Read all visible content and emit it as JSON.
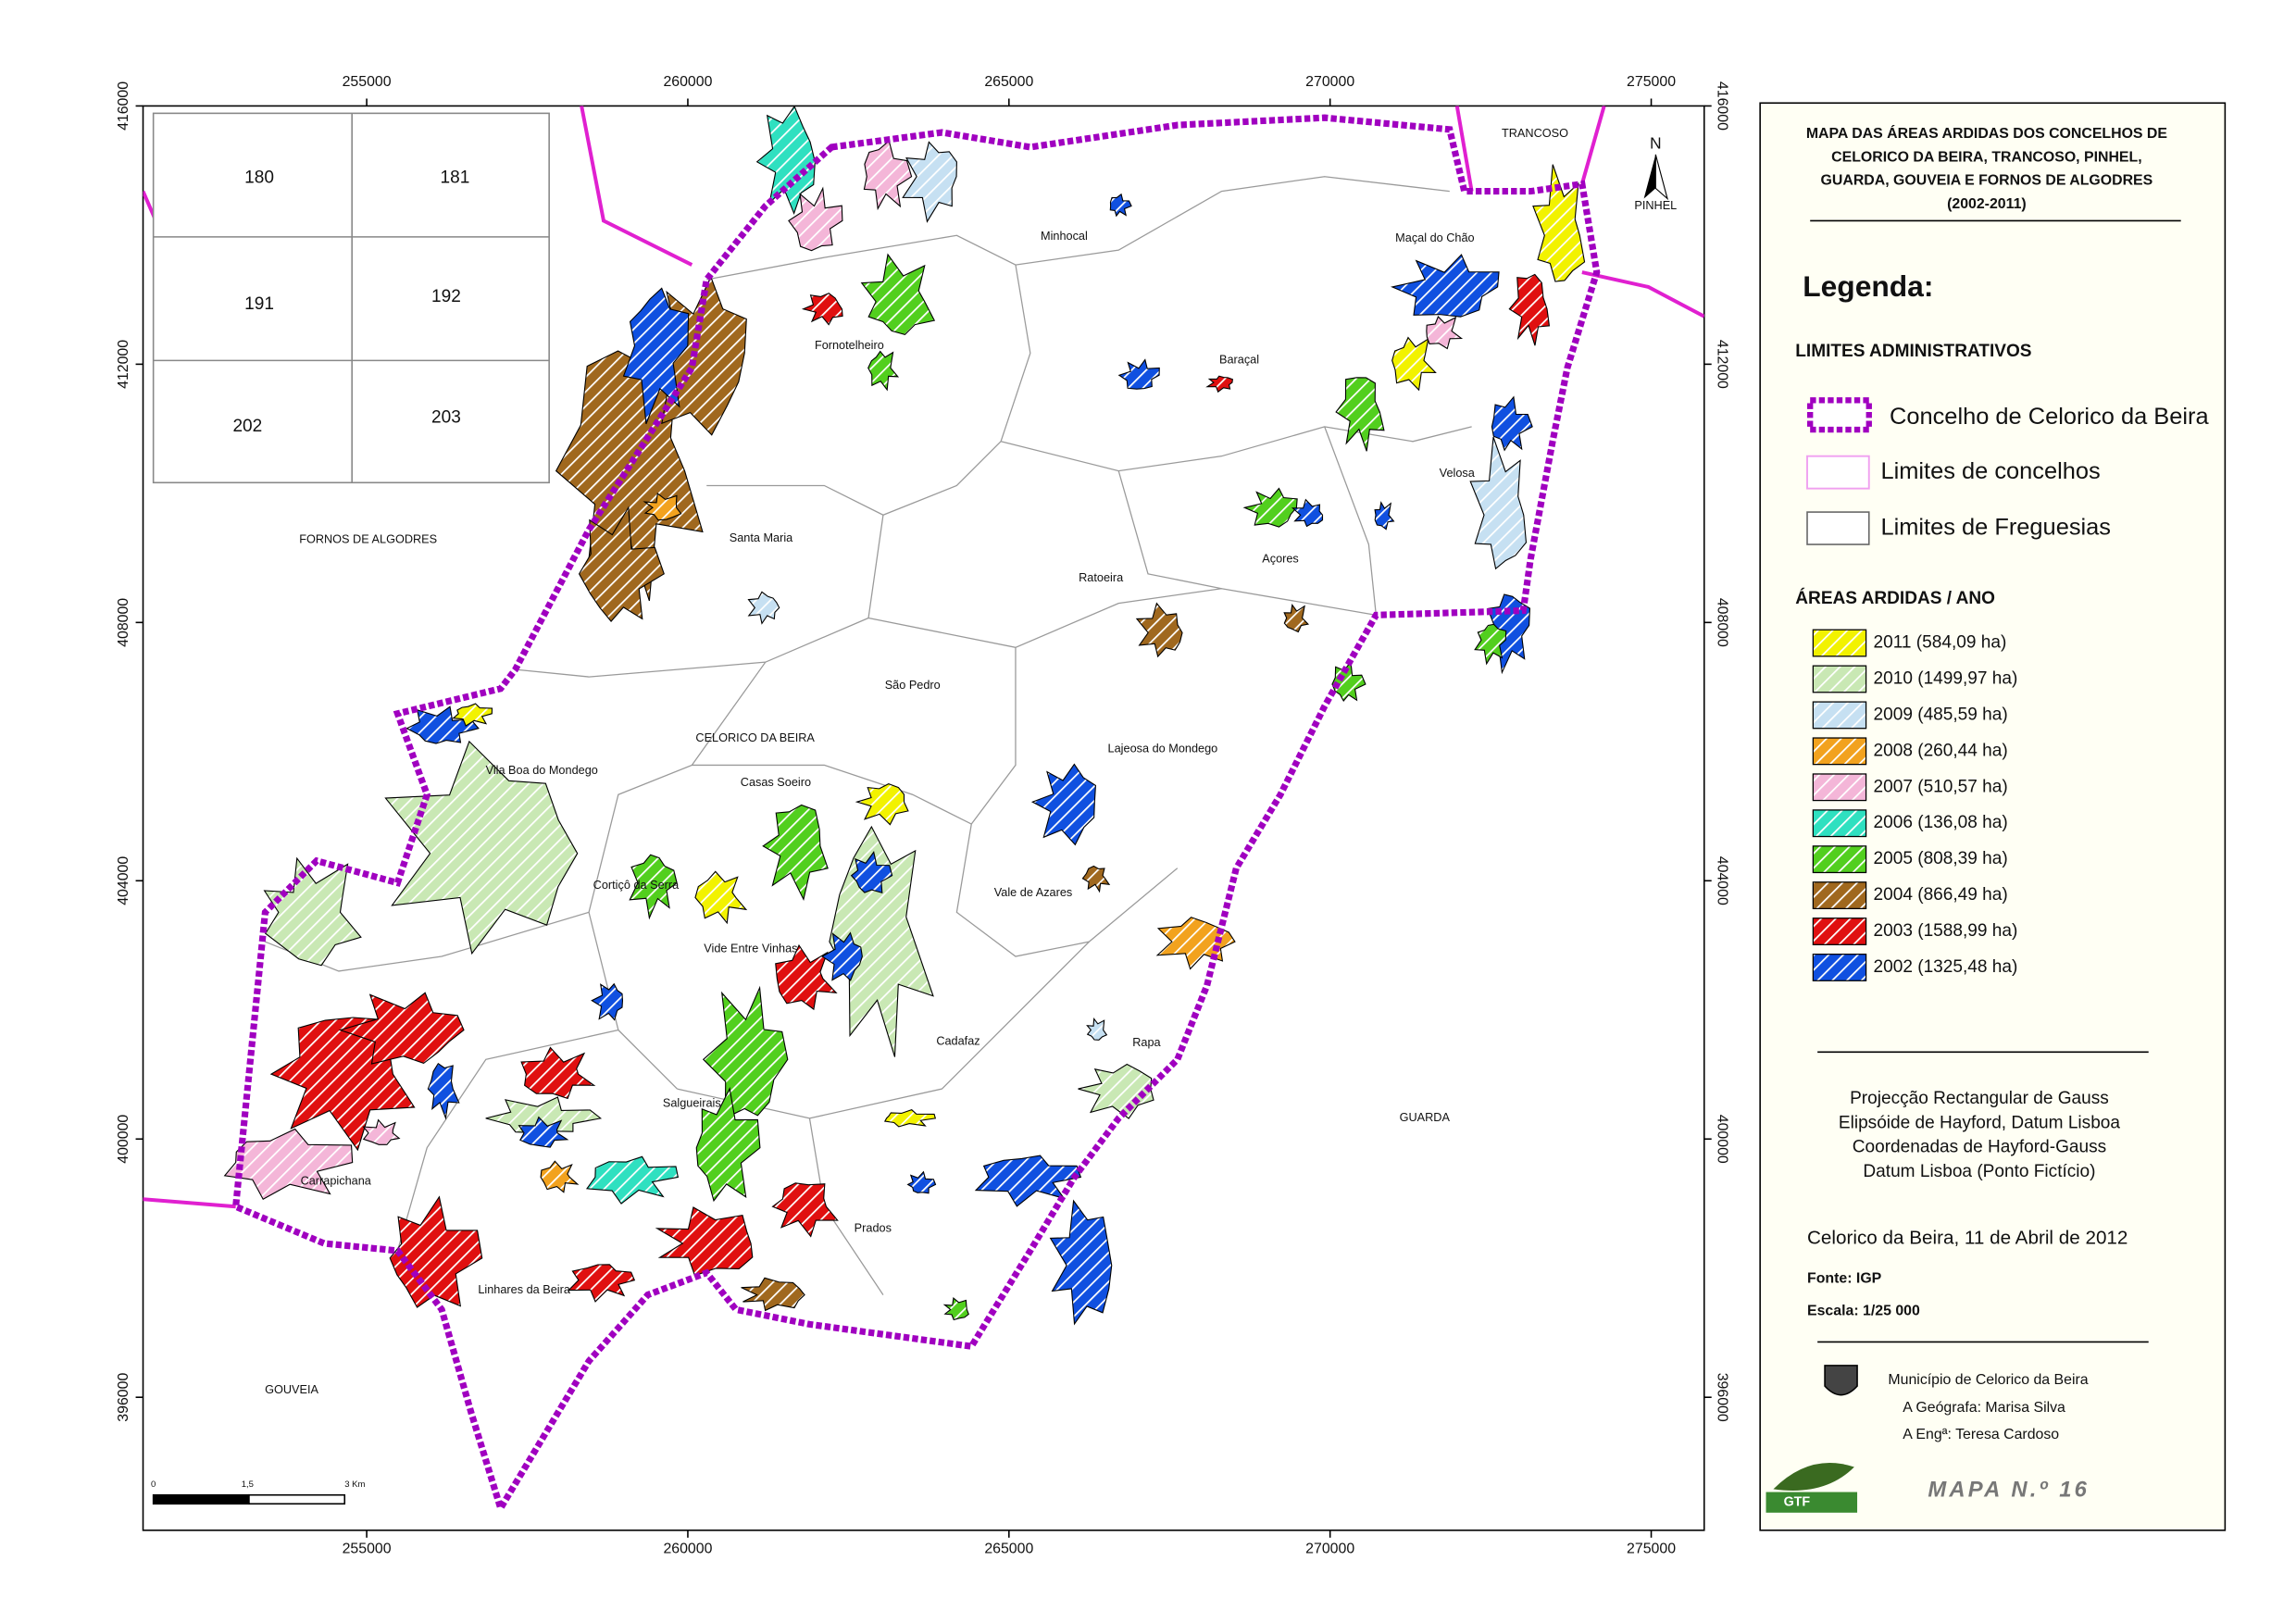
{
  "map": {
    "x_ticks": [
      255000,
      260000,
      265000,
      270000,
      275000
    ],
    "y_ticks": [
      416000,
      412000,
      408000,
      404000,
      400000,
      396000
    ],
    "inset_sheets": [
      "180",
      "181",
      "191",
      "192",
      "202",
      "203"
    ],
    "places": [
      "TRANCOSO",
      "PINHEL",
      "FORNOS DE ALGODRES",
      "GOUVEIA",
      "GUARDA",
      "Minhocal",
      "Maçal do Chão",
      "Fornotelheiro",
      "Baraçal",
      "Velosa",
      "Santa Maria",
      "Ratoeira",
      "Açores",
      "São Pedro",
      "CELORICO DA BEIRA",
      "Lajeosa do Mondego",
      "Vila Boa do Mondego",
      "Casas Soeiro",
      "Cortiçô da Serra",
      "Vale de Azares",
      "Vide Entre Vinhas",
      "Cadafaz",
      "Rapa",
      "Salgueirais",
      "Carrapichana",
      "Prados",
      "Linhares da Beira"
    ],
    "scale_bar": [
      "0",
      "1,5",
      "3 Km"
    ],
    "north": "N"
  },
  "legend": {
    "title": [
      "MAPA DAS ÁREAS ARDIDAS DOS CONCELHOS DE",
      "CELORICO DA BEIRA, TRANCOSO, PINHEL,",
      "GUARDA, GOUVEIA E FORNOS DE ALGODRES",
      "(2002-2011)"
    ],
    "heading": "Legenda:",
    "admin_heading": "LIMITES ADMINISTRATIVOS",
    "admin_items": [
      "Concelho de Celorico da Beira",
      "Limites de concelhos",
      "Limites de Freguesias"
    ],
    "burned_heading": "ÁREAS ARDIDAS / ANO",
    "burned_areas": [
      {
        "label": "2011 (584,09 ha)",
        "color": "#f2f200"
      },
      {
        "label": "2010 (1499,97 ha)",
        "color": "#c9e8b4"
      },
      {
        "label": "2009 (485,59 ha)",
        "color": "#c6e0f2"
      },
      {
        "label": "2008 (260,44 ha)",
        "color": "#f2a21e"
      },
      {
        "label": "2007 (510,57 ha)",
        "color": "#f4b6d8"
      },
      {
        "label": "2006 (136,08 ha)",
        "color": "#2fe0c0"
      },
      {
        "label": "2005 (808,39 ha)",
        "color": "#52cf1e"
      },
      {
        "label": "2004 (866,49 ha)",
        "color": "#a0681e"
      },
      {
        "label": "2003 (1588,99 ha)",
        "color": "#e01010"
      },
      {
        "label": "2002 (1325,48 ha)",
        "color": "#1050e0"
      }
    ]
  },
  "notes": {
    "projection": [
      "Projecção Rectangular de Gauss",
      "Elipsóide de Hayford, Datum Lisboa",
      "Coordenadas de Hayford-Gauss",
      "Datum Lisboa (Ponto Fictício)"
    ],
    "date": "Celorico da Beira, 11 de Abril de 2012",
    "source": "Fonte: IGP",
    "scale": "Escala: 1/25 000"
  },
  "credits": [
    "Município de Celorico da Beira",
    "A Geógrafa: Marisa Silva",
    "A Engª: Teresa Cardoso"
  ],
  "logo": "GTF",
  "map_number": "MAPA N.º 16"
}
